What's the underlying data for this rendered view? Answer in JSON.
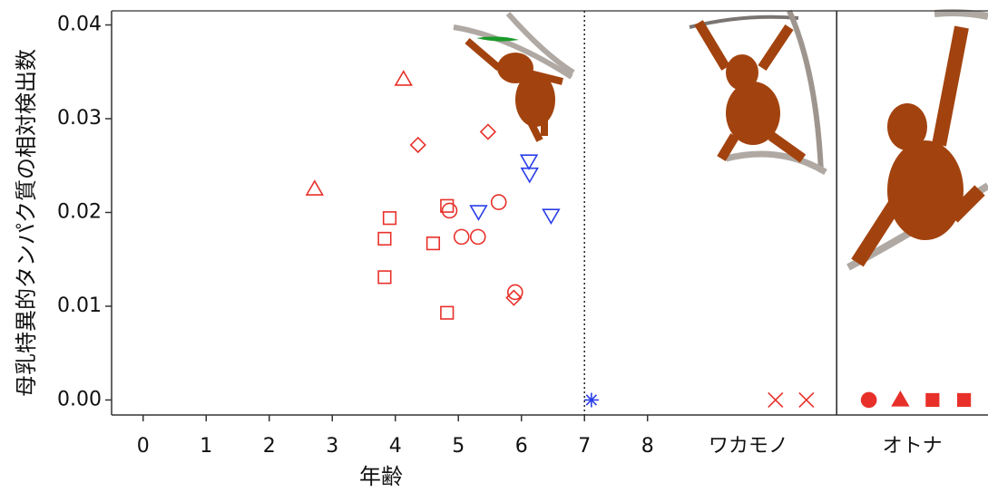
{
  "chart_data": {
    "type": "scatter",
    "y_label": "母乳特異的タンパク質の相対検出数",
    "x_label": "年齢",
    "xlim": [
      -0.5,
      13.4
    ],
    "ylim": [
      -0.0016,
      0.0415
    ],
    "xticks": [
      0,
      1,
      2,
      3,
      4,
      5,
      6,
      7,
      8,
      {
        "value": 9.6,
        "label": "ワカモノ"
      },
      {
        "value": 12.2,
        "label": "オトナ"
      }
    ],
    "yticks": [
      {
        "value": 0,
        "label": "0.00"
      },
      {
        "value": 0.01,
        "label": "0.01"
      },
      {
        "value": 0.02,
        "label": "0.02"
      },
      {
        "value": 0.03,
        "label": "0.03"
      },
      {
        "value": 0.04,
        "label": "0.04"
      }
    ],
    "vlines": [
      {
        "x": 7,
        "style": "dotted"
      },
      {
        "x": 11,
        "style": "solid"
      }
    ],
    "series": [
      {
        "marker": "triangle-up",
        "color": "#e8302a",
        "filled": false,
        "x": [
          4.13,
          2.72
        ],
        "values": [
          0.0342,
          0.0225
        ]
      },
      {
        "marker": "diamond",
        "color": "#e8302a",
        "filled": false,
        "x": [
          4.36,
          5.47,
          5.88
        ],
        "values": [
          0.0272,
          0.0286,
          0.0109
        ]
      },
      {
        "marker": "circle",
        "color": "#e8302a",
        "filled": false,
        "x": [
          4.86,
          5.05,
          5.31,
          5.64,
          5.9
        ],
        "values": [
          0.0202,
          0.0174,
          0.0174,
          0.0211,
          0.0115
        ]
      },
      {
        "marker": "square",
        "color": "#e8302a",
        "filled": false,
        "x": [
          3.91,
          3.83,
          4.6,
          4.82,
          3.83,
          4.82
        ],
        "values": [
          0.0194,
          0.0172,
          0.0167,
          0.0207,
          0.0131,
          0.0093
        ]
      },
      {
        "marker": "triangle-down",
        "color": "#2a3ee8",
        "filled": false,
        "x": [
          6.12,
          6.13,
          5.32,
          6.47
        ],
        "values": [
          0.0255,
          0.0241,
          0.0201,
          0.0197
        ]
      },
      {
        "marker": "asterisk",
        "color": "#2a3ee8",
        "filled": false,
        "x": [
          7.11
        ],
        "values": [
          0
        ]
      },
      {
        "marker": "x",
        "color": "#e8302a",
        "filled": false,
        "x": [
          10.03,
          10.52
        ],
        "values": [
          0,
          0
        ]
      },
      {
        "marker": "circle",
        "color": "#e8302a",
        "filled": true,
        "x": [
          11.51
        ],
        "values": [
          0
        ]
      },
      {
        "marker": "triangle-up",
        "color": "#e8302a",
        "filled": true,
        "x": [
          12.01
        ],
        "values": [
          0
        ]
      },
      {
        "marker": "square",
        "color": "#e8302a",
        "filled": true,
        "x": [
          12.52,
          13.02
        ],
        "values": [
          0,
          0
        ]
      }
    ]
  }
}
